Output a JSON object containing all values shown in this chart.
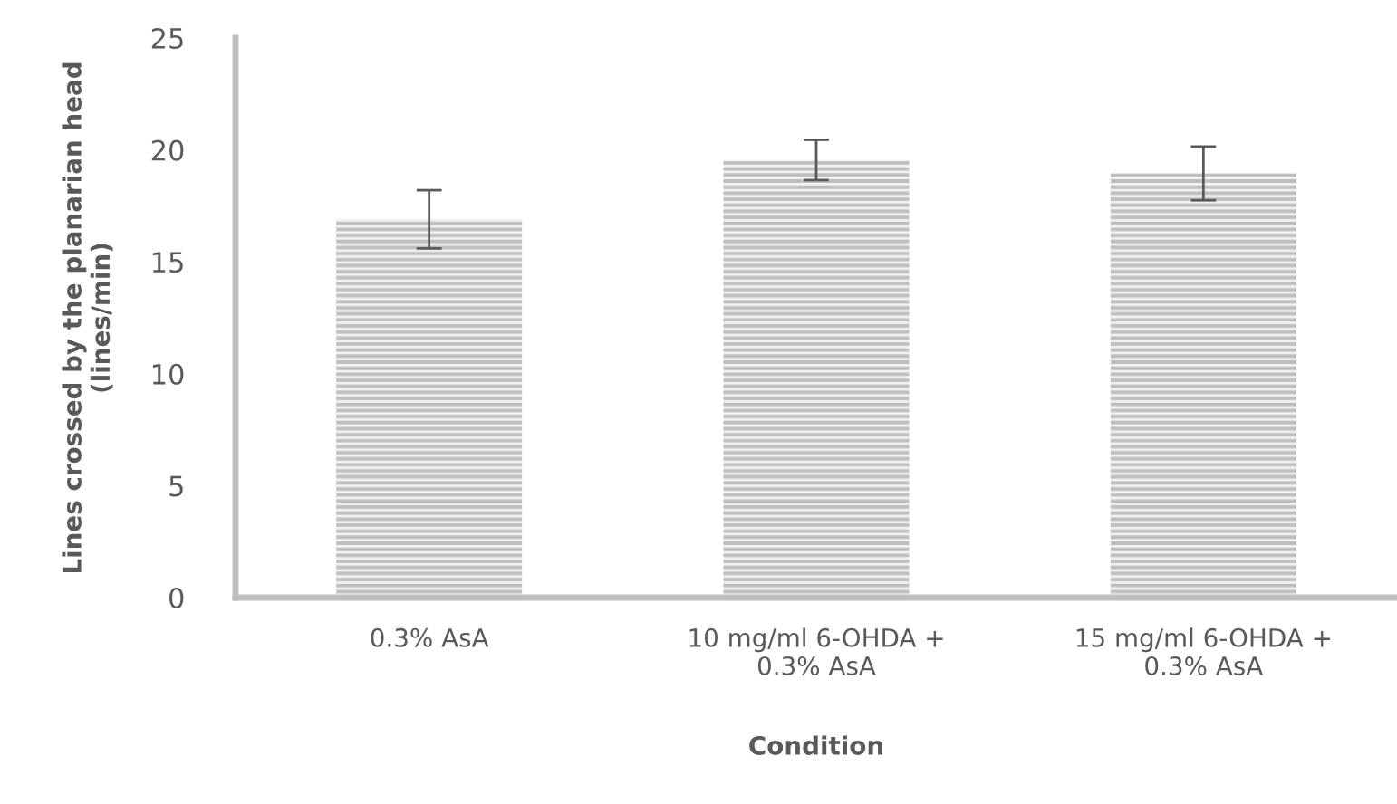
{
  "chart_data": {
    "type": "bar",
    "xlabel": "Condition",
    "ylabel": "Lines crossed by the planarian head (lines/min)",
    "categories": [
      "0.3% AsA",
      "10 mg/ml 6-OHDA +\n0.3% AsA",
      "15 mg/ml 6-OHDA +\n0.3% AsA"
    ],
    "values": [
      16.9,
      19.55,
      18.95
    ],
    "errors": [
      1.3,
      0.9,
      1.2
    ],
    "color": "#bfbfbf",
    "ylim": [
      0,
      25
    ],
    "yticks": [
      0,
      5,
      10,
      15,
      20,
      25
    ],
    "grid": false,
    "legend": false
  }
}
